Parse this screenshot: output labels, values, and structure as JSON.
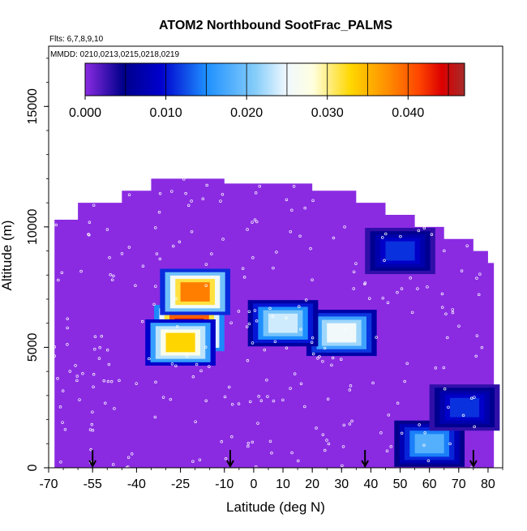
{
  "chart_data": {
    "type": "heatmap",
    "title": "ATOM2 Northbound SootFrac_PALMS",
    "subtitle_flights": "Flts: 6,7,8,9,10",
    "subtitle_dates": "MMDD: 0210,0213,0215,0218,0219",
    "xlabel": "Latitude (deg N)",
    "ylabel": "Altitude (m)",
    "xlim": [
      -70,
      85
    ],
    "ylim": [
      0,
      17500
    ],
    "x_ticks": [
      -70,
      -55,
      -40,
      -25,
      -10,
      0,
      10,
      20,
      30,
      40,
      50,
      60,
      70,
      80
    ],
    "y_ticks": [
      0,
      5000,
      10000,
      15000
    ],
    "colorbar": {
      "range": [
        0,
        0.047
      ],
      "ticks": [
        0.0,
        0.01,
        0.02,
        0.03,
        0.04
      ],
      "tick_labels": [
        "0.000",
        "0.010",
        "0.020",
        "0.030",
        "0.040"
      ],
      "colors": [
        "#8a2be2",
        "#00008b",
        "#0000cd",
        "#1e90ff",
        "#87cefa",
        "#f0f8ff",
        "#ffffe0",
        "#ffd700",
        "#ff8c00",
        "#ff4500",
        "#dc0000",
        "#a52a2a"
      ]
    },
    "profile_markers_lat": [
      -55,
      -8,
      38,
      75
    ],
    "hot_spots": [
      {
        "lat": -22,
        "alt": 5800,
        "value": 0.045
      },
      {
        "lat": -20,
        "alt": 7300,
        "value": 0.035
      },
      {
        "lat": -25,
        "alt": 5200,
        "value": 0.03
      },
      {
        "lat": 30,
        "alt": 5600,
        "value": 0.022
      },
      {
        "lat": 10,
        "alt": 6000,
        "value": 0.02
      },
      {
        "lat": 50,
        "alt": 9000,
        "value": 0.01
      },
      {
        "lat": 60,
        "alt": 1000,
        "value": 0.015
      },
      {
        "lat": 72,
        "alt": 2500,
        "value": 0.01
      }
    ],
    "grid": false,
    "legend": "none"
  }
}
